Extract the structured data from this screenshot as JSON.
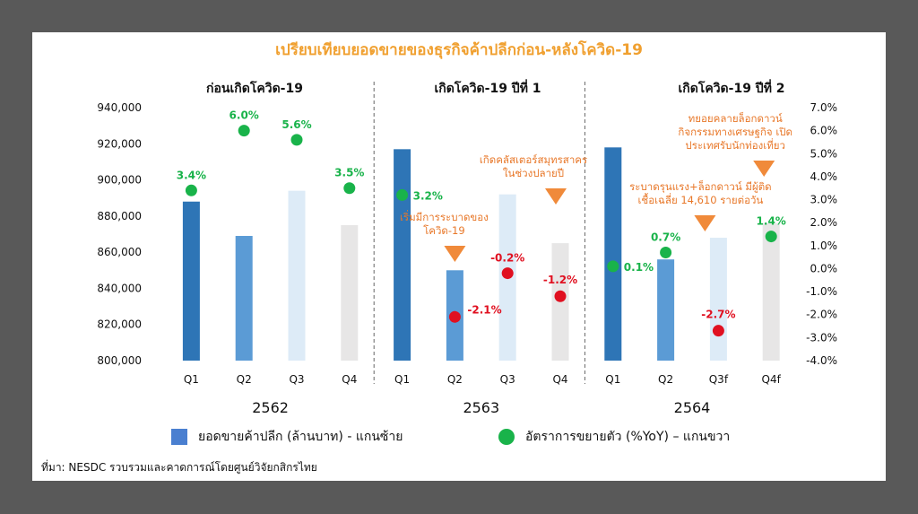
{
  "title": "เปรียบเทียบยอดขายของธุรกิจค้าปลีกก่อน-หลังโควิด-19",
  "periods": [
    "ก่อนเกิดโควิด-19",
    "เกิดโควิด-19 ปีที่ 1",
    "เกิดโควิด-19 ปีที่ 2"
  ],
  "legend": {
    "bars": "ยอดขายค้าปลีก (ล้านบาท) - แกนซ้าย",
    "dots": "อัตราการขยายตัว (%YoY) – แกนขวา"
  },
  "source": "ที่มา: NESDC รวบรวมและคาดการณ์โดยศูนย์วิจัยกสิกรไทย",
  "colors": {
    "title": "#F0A030",
    "dot": "#19B34A",
    "dot_negative": "#E01020",
    "annotation": "#E8782A",
    "green_label": "#19B34A",
    "red_label": "#E01020"
  },
  "chart_data": {
    "type": "bar",
    "years": [
      "2562",
      "2563",
      "2564"
    ],
    "categories": [
      "Q1",
      "Q2",
      "Q3",
      "Q4",
      "Q1",
      "Q2",
      "Q3",
      "Q4",
      "Q1",
      "Q2",
      "Q3f",
      "Q4f"
    ],
    "bar_colors": [
      "#2E75B6",
      "#5B9BD5",
      "#DDEBF7",
      "#E7E6E6",
      "#2E75B6",
      "#5B9BD5",
      "#DDEBF7",
      "#E7E6E6",
      "#2E75B6",
      "#5B9BD5",
      "#DDEBF7",
      "#E7E6E6"
    ],
    "series": [
      {
        "axis": "left",
        "type": "bar",
        "values": [
          888000,
          869000,
          894000,
          875000,
          917000,
          850000,
          892000,
          865000,
          918000,
          856000,
          868000,
          876000
        ]
      },
      {
        "axis": "right",
        "type": "scatter",
        "values": [
          3.4,
          6.0,
          5.6,
          3.5,
          3.2,
          -2.1,
          -0.2,
          -1.2,
          0.1,
          0.7,
          -2.7,
          1.4
        ],
        "labels": [
          "3.4%",
          "6.0%",
          "5.6%",
          "3.5%",
          "3.2%",
          "-2.1%",
          "-0.2%",
          "-1.2%",
          "0.1%",
          "0.7%",
          "-2.7%",
          "1.4%"
        ]
      }
    ],
    "ylim_left": [
      800000,
      940000
    ],
    "yticks_left": [
      "800,000",
      "820,000",
      "840,000",
      "860,000",
      "880,000",
      "900,000",
      "920,000",
      "940,000"
    ],
    "ylim_right": [
      -4.0,
      7.0
    ],
    "yticks_right": [
      "-4.0%",
      "-3.0%",
      "-2.0%",
      "-1.0%",
      "0.0%",
      "1.0%",
      "2.0%",
      "3.0%",
      "4.0%",
      "5.0%",
      "6.0%",
      "7.0%"
    ],
    "annotations": [
      {
        "text": [
          "เริ่มมีการระบาดของ",
          "โควิด-19"
        ],
        "bar_index": 5
      },
      {
        "text": [
          "เกิดคลัสเตอร์สมุทรสาคร",
          "ในช่วงปลายปี"
        ],
        "bar_index": 7
      },
      {
        "text": [
          "ระบาดรุนแรง+ล็อกดาวน์ มีผู้ติด",
          "เชื้อเฉลี่ย 14,610 รายต่อวัน"
        ],
        "bar_index": 10
      },
      {
        "text": [
          "ทยอยคลายล็อกดาวน์",
          "กิจกรรมทางเศรษฐกิจ เปิด",
          "ประเทศรับนักท่องเที่ยว"
        ],
        "bar_index": 11
      }
    ]
  }
}
